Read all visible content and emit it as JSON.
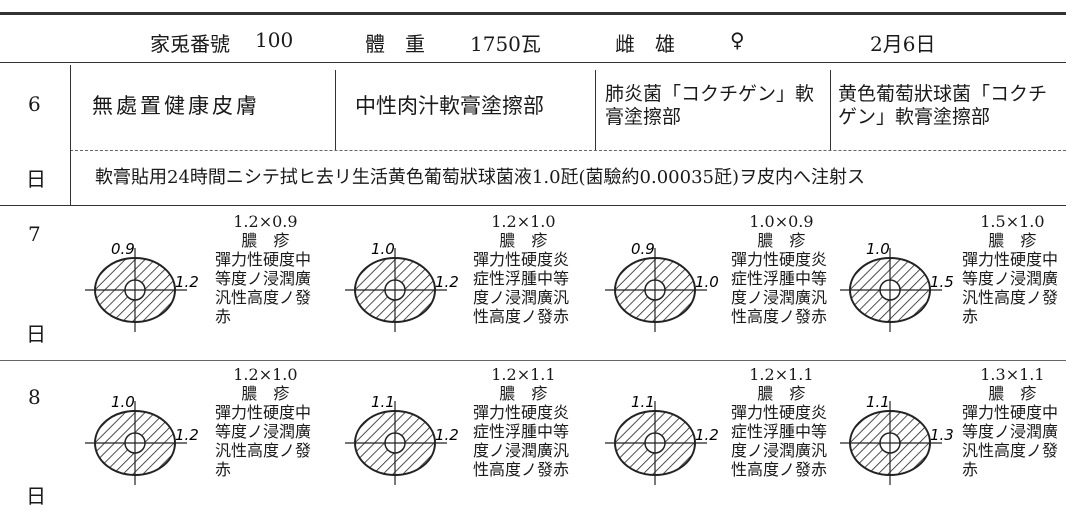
{
  "header": {
    "rabbit_label": "家兎番號",
    "rabbit_no": "100",
    "weight_label": "體　重",
    "weight": "1750瓦",
    "sex_label": "雌　雄",
    "sex": "♀",
    "date": "2月6日"
  },
  "day6": {
    "day": "6",
    "suffix": "日",
    "cells": [
      "無處置健康皮膚",
      "中性肉汁軟膏塗擦部",
      "肺炎菌「コクチゲン」軟膏塗擦部",
      "黄色葡萄狀球菌「コクチゲン」軟膏塗擦部"
    ],
    "note": "軟膏貼用24時間ニシテ拭ヒ去リ生活黄色葡萄狀球菌液1.0瓩(菌驗約0.00035瓩)ヲ皮内へ注射ス"
  },
  "rows": [
    {
      "day": "7",
      "suffix": "日",
      "cells": [
        {
          "v": "0.9",
          "h": "1.2",
          "size": "1.2×0.9",
          "type": "膿　疹",
          "desc": "彈力性硬度中等度ノ浸潤廣汎性高度ノ發赤"
        },
        {
          "v": "1.0",
          "h": "1.2",
          "size": "1.2×1.0",
          "type": "膿　疹",
          "desc": "彈力性硬度炎症性浮腫中等度ノ浸潤廣汎性高度ノ發赤"
        },
        {
          "v": "0.9",
          "h": "1.0",
          "size": "1.0×0.9",
          "type": "膿　疹",
          "desc": "彈力性硬度炎症性浮腫中等度ノ浸潤廣汎性高度ノ發赤"
        },
        {
          "v": "1.0",
          "h": "1.5",
          "size": "1.5×1.0",
          "type": "膿　疹",
          "desc": "彈力性硬度中等度ノ浸潤廣汎性高度ノ發赤"
        }
      ]
    },
    {
      "day": "8",
      "suffix": "日",
      "cells": [
        {
          "v": "1.0",
          "h": "1.2",
          "size": "1.2×1.0",
          "type": "膿　疹",
          "desc": "彈力性硬度中等度ノ浸潤廣汎性高度ノ發赤"
        },
        {
          "v": "1.1",
          "h": "1.2",
          "size": "1.2×1.1",
          "type": "膿　疹",
          "desc": "彈力性硬度炎症性浮腫中等度ノ浸潤廣汎性高度ノ發赤"
        },
        {
          "v": "1.1",
          "h": "1.2",
          "size": "1.2×1.1",
          "type": "膿　疹",
          "desc": "彈力性硬度炎症性浮腫中等度ノ浸潤廣汎性高度ノ發赤"
        },
        {
          "v": "1.1",
          "h": "1.3",
          "size": "1.3×1.1",
          "type": "膿　疹",
          "desc": "彈力性硬度中等度ノ浸潤廣汎性高度ノ發赤"
        }
      ]
    }
  ]
}
